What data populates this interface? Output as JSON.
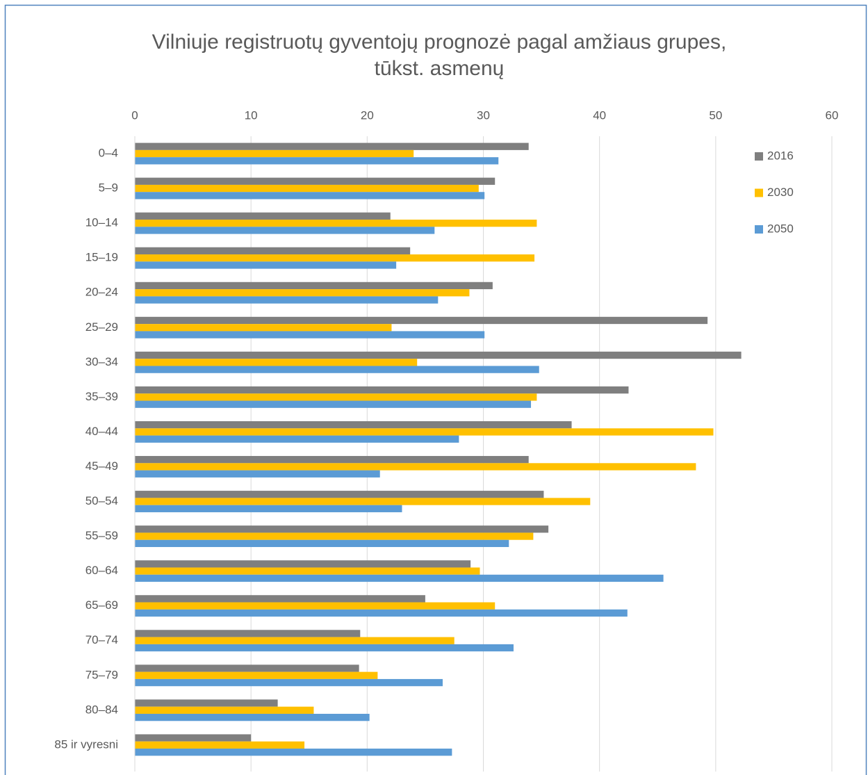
{
  "chart_data": {
    "type": "barh",
    "title": [
      "Vilniuje registruotų gyventojų prognozė pagal amžiaus grupes,",
      "tūkst. asmenų"
    ],
    "categories": [
      "0–4",
      "5–9",
      "10–14",
      "15–19",
      "20–24",
      "25–29",
      "30–34",
      "35–39",
      "40–44",
      "45–49",
      "50–54",
      "55–59",
      "60–64",
      "65–69",
      "70–74",
      "75–79",
      "80–84",
      "85 ir vyresni"
    ],
    "series": [
      {
        "name": "2016",
        "color": "#7f7f7f",
        "values": [
          33.9,
          31.0,
          22.0,
          23.7,
          30.8,
          49.3,
          52.2,
          42.5,
          37.6,
          33.9,
          35.2,
          35.6,
          28.9,
          25.0,
          19.4,
          19.3,
          12.3,
          10.0
        ]
      },
      {
        "name": "2030",
        "color": "#ffc000",
        "values": [
          24.0,
          29.6,
          34.6,
          34.4,
          28.8,
          22.1,
          24.3,
          34.6,
          49.8,
          48.3,
          39.2,
          34.3,
          29.7,
          31.0,
          27.5,
          20.9,
          15.4,
          14.6
        ]
      },
      {
        "name": "2050",
        "color": "#5b9bd5",
        "values": [
          31.3,
          30.1,
          25.8,
          22.5,
          26.1,
          30.1,
          34.8,
          34.1,
          27.9,
          21.1,
          23.0,
          32.2,
          45.5,
          42.4,
          32.6,
          26.5,
          20.2,
          27.3
        ]
      }
    ],
    "xlim": [
      0,
      60
    ],
    "xticks": [
      0,
      10,
      20,
      30,
      40,
      50,
      60
    ],
    "grid": true,
    "legend": "right"
  }
}
